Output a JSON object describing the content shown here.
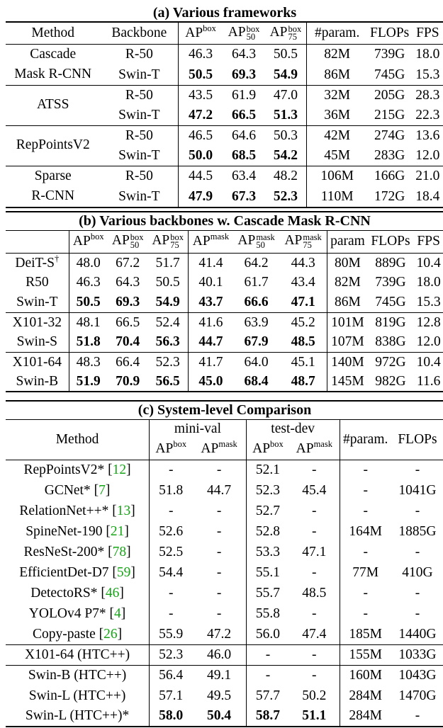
{
  "table_a": {
    "caption": "(a) Various frameworks",
    "headers": {
      "method": "Method",
      "backbone": "Backbone",
      "ap": "AP",
      "box": "box",
      "s50": "50",
      "s75": "75",
      "param": "#param.",
      "flops": "FLOPs",
      "fps": "FPS"
    },
    "groups": [
      {
        "method": [
          "Cascade",
          "Mask R-CNN"
        ],
        "rows": [
          {
            "backbone": "R-50",
            "ap": "46.3",
            "ap50": "64.3",
            "ap75": "50.5",
            "param": "82M",
            "flops": "739G",
            "fps": "18.0",
            "bold": false
          },
          {
            "backbone": "Swin-T",
            "ap": "50.5",
            "ap50": "69.3",
            "ap75": "54.9",
            "param": "86M",
            "flops": "745G",
            "fps": "15.3",
            "bold": true
          }
        ]
      },
      {
        "method": [
          "ATSS"
        ],
        "rows": [
          {
            "backbone": "R-50",
            "ap": "43.5",
            "ap50": "61.9",
            "ap75": "47.0",
            "param": "32M",
            "flops": "205G",
            "fps": "28.3",
            "bold": false
          },
          {
            "backbone": "Swin-T",
            "ap": "47.2",
            "ap50": "66.5",
            "ap75": "51.3",
            "param": "36M",
            "flops": "215G",
            "fps": "22.3",
            "bold": true
          }
        ]
      },
      {
        "method": [
          "RepPointsV2"
        ],
        "rows": [
          {
            "backbone": "R-50",
            "ap": "46.5",
            "ap50": "64.6",
            "ap75": "50.3",
            "param": "42M",
            "flops": "274G",
            "fps": "13.6",
            "bold": false
          },
          {
            "backbone": "Swin-T",
            "ap": "50.0",
            "ap50": "68.5",
            "ap75": "54.2",
            "param": "45M",
            "flops": "283G",
            "fps": "12.0",
            "bold": true
          }
        ]
      },
      {
        "method": [
          "Sparse",
          "R-CNN"
        ],
        "rows": [
          {
            "backbone": "R-50",
            "ap": "44.5",
            "ap50": "63.4",
            "ap75": "48.2",
            "param": "106M",
            "flops": "166G",
            "fps": "21.0",
            "bold": false
          },
          {
            "backbone": "Swin-T",
            "ap": "47.9",
            "ap50": "67.3",
            "ap75": "52.3",
            "param": "110M",
            "flops": "172G",
            "fps": "18.4",
            "bold": true
          }
        ]
      }
    ]
  },
  "table_b": {
    "caption": "(b) Various backbones w. Cascade Mask R-CNN",
    "headers": {
      "ap": "AP",
      "box": "box",
      "mask": "mask",
      "s50": "50",
      "s75": "75",
      "param": "param",
      "flops": "FLOPs",
      "fps": "FPS"
    },
    "groups": [
      [
        {
          "name": "DeiT-S",
          "dagger": "†",
          "v": [
            "48.0",
            "67.2",
            "51.7",
            "41.4",
            "64.2",
            "44.3",
            "80M",
            "889G",
            "10.4"
          ],
          "bold": false
        },
        {
          "name": "R50",
          "dagger": "",
          "v": [
            "46.3",
            "64.3",
            "50.5",
            "40.1",
            "61.7",
            "43.4",
            "82M",
            "739G",
            "18.0"
          ],
          "bold": false
        },
        {
          "name": "Swin-T",
          "dagger": "",
          "v": [
            "50.5",
            "69.3",
            "54.9",
            "43.7",
            "66.6",
            "47.1",
            "86M",
            "745G",
            "15.3"
          ],
          "bold": true
        }
      ],
      [
        {
          "name": "X101-32",
          "dagger": "",
          "v": [
            "48.1",
            "66.5",
            "52.4",
            "41.6",
            "63.9",
            "45.2",
            "101M",
            "819G",
            "12.8"
          ],
          "bold": false
        },
        {
          "name": "Swin-S",
          "dagger": "",
          "v": [
            "51.8",
            "70.4",
            "56.3",
            "44.7",
            "67.9",
            "48.5",
            "107M",
            "838G",
            "12.0"
          ],
          "bold": true
        }
      ],
      [
        {
          "name": "X101-64",
          "dagger": "",
          "v": [
            "48.3",
            "66.4",
            "52.3",
            "41.7",
            "64.0",
            "45.1",
            "140M",
            "972G",
            "10.4"
          ],
          "bold": false
        },
        {
          "name": "Swin-B",
          "dagger": "",
          "v": [
            "51.9",
            "70.9",
            "56.5",
            "45.0",
            "68.4",
            "48.7",
            "145M",
            "982G",
            "11.6"
          ],
          "bold": true
        }
      ]
    ]
  },
  "table_c": {
    "caption": "(c) System-level Comparison",
    "headers": {
      "method": "Method",
      "minival": "mini-val",
      "testdev": "test-dev",
      "ap": "AP",
      "box": "box",
      "mask": "mask",
      "param": "#param.",
      "flops": "FLOPs"
    },
    "groups": [
      [
        {
          "name": "RepPointsV2*",
          "cite": "12",
          "v": [
            "-",
            "-",
            "52.1",
            "-",
            "-",
            "-"
          ],
          "bold": false
        },
        {
          "name": "GCNet*",
          "cite": "7",
          "v": [
            "51.8",
            "44.7",
            "52.3",
            "45.4",
            "-",
            "1041G"
          ],
          "bold": false
        },
        {
          "name": "RelationNet++*",
          "cite": "13",
          "v": [
            "-",
            "-",
            "52.7",
            "-",
            "-",
            "-"
          ],
          "bold": false
        },
        {
          "name": "SpineNet-190",
          "cite": "21",
          "v": [
            "52.6",
            "-",
            "52.8",
            "-",
            "164M",
            "1885G"
          ],
          "bold": false
        },
        {
          "name": "ResNeSt-200*",
          "cite": "78",
          "v": [
            "52.5",
            "-",
            "53.3",
            "47.1",
            "-",
            "-"
          ],
          "bold": false
        },
        {
          "name": "EfficientDet-D7",
          "cite": "59",
          "v": [
            "54.4",
            "-",
            "55.1",
            "-",
            "77M",
            "410G"
          ],
          "bold": false
        },
        {
          "name": "DetectoRS*",
          "cite": "46",
          "v": [
            "-",
            "-",
            "55.7",
            "48.5",
            "-",
            "-"
          ],
          "bold": false
        },
        {
          "name": "YOLOv4 P7*",
          "cite": "4",
          "v": [
            "-",
            "-",
            "55.8",
            "-",
            "-",
            "-"
          ],
          "bold": false
        },
        {
          "name": "Copy-paste",
          "cite": "26",
          "v": [
            "55.9",
            "47.2",
            "56.0",
            "47.4",
            "185M",
            "1440G"
          ],
          "bold": false
        }
      ],
      [
        {
          "name": "X101-64 (HTC++)",
          "cite": "",
          "v": [
            "52.3",
            "46.0",
            "-",
            "-",
            "155M",
            "1033G"
          ],
          "bold": false
        }
      ],
      [
        {
          "name": "Swin-B (HTC++)",
          "cite": "",
          "v": [
            "56.4",
            "49.1",
            "-",
            "-",
            "160M",
            "1043G"
          ],
          "bold": false
        },
        {
          "name": "Swin-L (HTC++)",
          "cite": "",
          "v": [
            "57.1",
            "49.5",
            "57.7",
            "50.2",
            "284M",
            "1470G"
          ],
          "bold": false
        },
        {
          "name": "Swin-L (HTC++)*",
          "cite": "",
          "v": [
            "58.0",
            "50.4",
            "58.7",
            "51.1",
            "284M",
            "-"
          ],
          "bold": true
        }
      ]
    ]
  }
}
